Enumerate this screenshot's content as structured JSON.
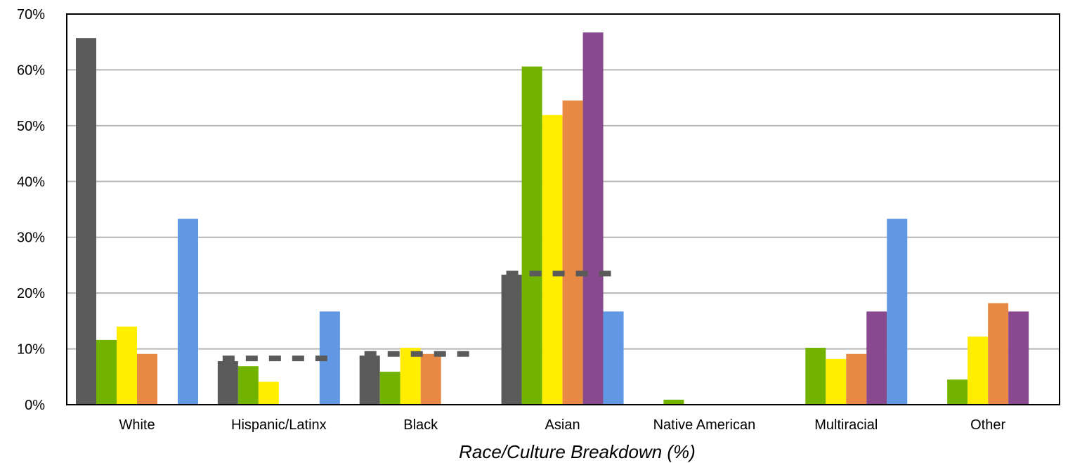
{
  "chart_data": {
    "type": "bar",
    "xlabel": "Race/Culture Breakdown (%)",
    "ylabel": "",
    "ylim": [
      0,
      70
    ],
    "yticks": [
      "0%",
      "10%",
      "20%",
      "30%",
      "40%",
      "50%",
      "60%",
      "70%"
    ],
    "grid": true,
    "legend": "none",
    "categories": [
      "White",
      "Hispanic/Latinx",
      "Black",
      "Asian",
      "Native American",
      "Multiracial",
      "Other"
    ],
    "series": [
      {
        "color": "#5a5a5a",
        "values": [
          65.7,
          7.8,
          8.8,
          23.3,
          0,
          0,
          0
        ]
      },
      {
        "color": "#72b300",
        "values": [
          11.6,
          6.9,
          5.9,
          60.6,
          0.9,
          10.2,
          4.5
        ]
      },
      {
        "color": "#ffee00",
        "values": [
          14.0,
          4.1,
          10.2,
          51.9,
          0,
          8.2,
          12.2
        ]
      },
      {
        "color": "#e88a45",
        "values": [
          9.1,
          0,
          9.1,
          54.5,
          0,
          9.1,
          18.2
        ]
      },
      {
        "color": "#88498f",
        "values": [
          0,
          0,
          0,
          66.7,
          0,
          16.7,
          16.7
        ]
      },
      {
        "color": "#6098e6",
        "values": [
          33.3,
          16.7,
          0,
          16.7,
          0,
          33.3,
          0
        ]
      }
    ],
    "reference_lines": [
      {
        "style": "dashed",
        "color": "#5a5a5a",
        "values": [
          null,
          8.3,
          9.1,
          23.5,
          null,
          null,
          null
        ]
      }
    ]
  }
}
